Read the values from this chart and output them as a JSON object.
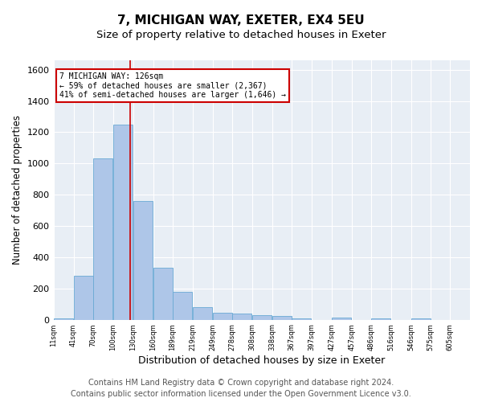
{
  "title1": "7, MICHIGAN WAY, EXETER, EX4 5EU",
  "title2": "Size of property relative to detached houses in Exeter",
  "xlabel": "Distribution of detached houses by size in Exeter",
  "ylabel": "Number of detached properties",
  "footer1": "Contains HM Land Registry data © Crown copyright and database right 2024.",
  "footer2": "Contains public sector information licensed under the Open Government Licence v3.0.",
  "bar_left_edges": [
    11,
    41,
    70,
    100,
    130,
    160,
    189,
    219,
    249,
    278,
    308,
    338,
    367,
    397,
    427,
    457,
    486,
    516,
    546,
    575
  ],
  "bar_heights": [
    10,
    280,
    1030,
    1250,
    760,
    330,
    180,
    80,
    45,
    40,
    30,
    22,
    10,
    0,
    15,
    0,
    10,
    0,
    10,
    0
  ],
  "bin_width": 29,
  "bar_color": "#aec6e8",
  "bar_edge_color": "#6aaad4",
  "tick_labels": [
    "11sqm",
    "41sqm",
    "70sqm",
    "100sqm",
    "130sqm",
    "160sqm",
    "189sqm",
    "219sqm",
    "249sqm",
    "278sqm",
    "308sqm",
    "338sqm",
    "367sqm",
    "397sqm",
    "427sqm",
    "457sqm",
    "486sqm",
    "516sqm",
    "546sqm",
    "575sqm",
    "605sqm"
  ],
  "property_size": 126,
  "annotation_text": "7 MICHIGAN WAY: 126sqm\n← 59% of detached houses are smaller (2,367)\n41% of semi-detached houses are larger (1,646) →",
  "annotation_box_color": "#cc0000",
  "vline_color": "#cc0000",
  "ylim": [
    0,
    1660
  ],
  "xlim": [
    11,
    634
  ],
  "background_color": "#e8eef5",
  "grid_color": "#ffffff",
  "title1_fontsize": 11,
  "title2_fontsize": 9.5,
  "xlabel_fontsize": 9,
  "ylabel_fontsize": 8.5,
  "footer_fontsize": 7,
  "yticks": [
    0,
    200,
    400,
    600,
    800,
    1000,
    1200,
    1400,
    1600
  ]
}
